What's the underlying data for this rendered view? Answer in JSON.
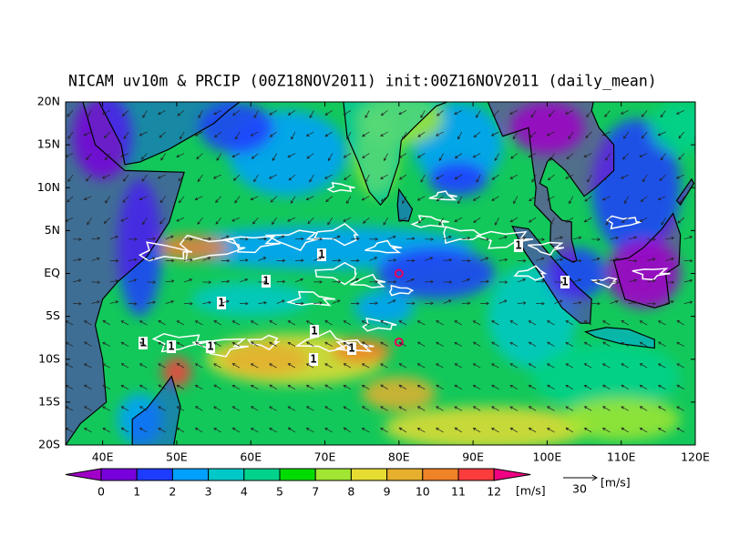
{
  "map": {
    "title": "NICAM uv10m & PRCIP (00Z18NOV2011) init:00Z16NOV2011 (daily_mean)",
    "xlim": [
      35,
      120
    ],
    "ylim": [
      -20,
      20
    ],
    "lat_ticks": [
      {
        "value": 20,
        "label": "20N"
      },
      {
        "value": 15,
        "label": "15N"
      },
      {
        "value": 10,
        "label": "10N"
      },
      {
        "value": 5,
        "label": "5N"
      },
      {
        "value": 0,
        "label": "EQ"
      },
      {
        "value": -5,
        "label": "5S"
      },
      {
        "value": -10,
        "label": "10S"
      },
      {
        "value": -15,
        "label": "15S"
      },
      {
        "value": -20,
        "label": "20S"
      }
    ],
    "lon_ticks": [
      {
        "value": 40,
        "label": "40E"
      },
      {
        "value": 50,
        "label": "50E"
      },
      {
        "value": 60,
        "label": "60E"
      },
      {
        "value": 70,
        "label": "70E"
      },
      {
        "value": 80,
        "label": "80E"
      },
      {
        "value": 90,
        "label": "90E"
      },
      {
        "value": 100,
        "label": "100E"
      },
      {
        "value": 110,
        "label": "110E"
      },
      {
        "value": 120,
        "label": "120E"
      }
    ],
    "colorbar": {
      "levels": [
        0,
        1,
        2,
        3,
        4,
        5,
        7,
        8,
        9,
        10,
        11,
        12
      ],
      "colors": [
        "#a000c8",
        "#7800dc",
        "#1e3cff",
        "#00a0ff",
        "#00c8c8",
        "#00d28c",
        "#00dc00",
        "#a0e632",
        "#e6dc32",
        "#e6af2d",
        "#f08228",
        "#fa3c3c",
        "#f00082"
      ],
      "unit": "[m/s]"
    },
    "ref_vector": {
      "value": 30,
      "unit": "[m/s]"
    },
    "contour_labels": [
      "1",
      "1",
      "1",
      "1",
      "1",
      "1",
      "1",
      "1",
      "1",
      "1",
      "1"
    ]
  }
}
